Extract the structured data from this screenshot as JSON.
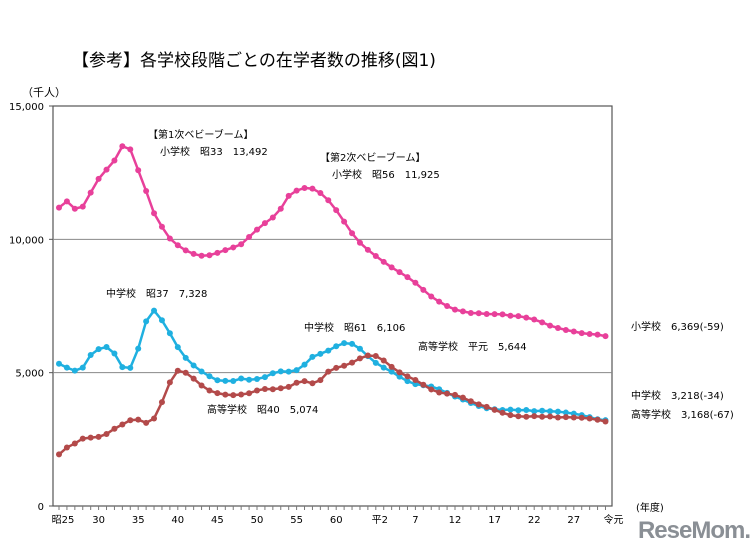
{
  "chart_data": {
    "type": "line",
    "title": "【参考】各学校段階ごとの在学者数の推移(図1)",
    "ylabel": "（千人）",
    "xlabel": "(年度)",
    "ylim": [
      0,
      15000
    ],
    "yticks": [
      "0",
      "5,000",
      "10,000",
      "15,000"
    ],
    "ytick_values": [
      0,
      5000,
      10000,
      15000
    ],
    "grid": "horizontal",
    "x_years": [
      1950,
      1951,
      1952,
      1953,
      1954,
      1955,
      1956,
      1957,
      1958,
      1959,
      1960,
      1961,
      1962,
      1963,
      1964,
      1965,
      1966,
      1967,
      1968,
      1969,
      1970,
      1971,
      1972,
      1973,
      1974,
      1975,
      1976,
      1977,
      1978,
      1979,
      1980,
      1981,
      1982,
      1983,
      1984,
      1985,
      1986,
      1987,
      1988,
      1989,
      1990,
      1991,
      1992,
      1993,
      1994,
      1995,
      1996,
      1997,
      1998,
      1999,
      2000,
      2001,
      2002,
      2003,
      2004,
      2005,
      2006,
      2007,
      2008,
      2009,
      2010,
      2011,
      2012,
      2013,
      2014,
      2015,
      2016,
      2017,
      2018,
      2019
    ],
    "xticks": [
      {
        "label": "昭25",
        "year": 1950
      },
      {
        "label": "30",
        "year": 1955
      },
      {
        "label": "35",
        "year": 1960
      },
      {
        "label": "40",
        "year": 1965
      },
      {
        "label": "45",
        "year": 1970
      },
      {
        "label": "50",
        "year": 1975
      },
      {
        "label": "55",
        "year": 1980
      },
      {
        "label": "60",
        "year": 1985
      },
      {
        "label": "平2",
        "year": 1990
      },
      {
        "label": "7",
        "year": 1995
      },
      {
        "label": "12",
        "year": 2000
      },
      {
        "label": "17",
        "year": 2005
      },
      {
        "label": "22",
        "year": 2010
      },
      {
        "label": "27",
        "year": 2015
      },
      {
        "label": "令元",
        "year": 2019
      }
    ],
    "series": [
      {
        "name": "小学校",
        "color": "#e8409a",
        "values": [
          11191,
          11423,
          11149,
          11225,
          11751,
          12267,
          12616,
          12957,
          13492,
          13375,
          12591,
          11811,
          10977,
          10471,
          10030,
          9776,
          9584,
          9453,
          9383,
          9403,
          9493,
          9596,
          9696,
          9816,
          10088,
          10365,
          10609,
          10819,
          11146,
          11630,
          11827,
          11925,
          11902,
          11739,
          11465,
          11095,
          10665,
          10227,
          9873,
          9607,
          9373,
          9157,
          8947,
          8769,
          8583,
          8370,
          8105,
          7855,
          7663,
          7500,
          7366,
          7297,
          7239,
          7227,
          7201,
          7197,
          7188,
          7133,
          7122,
          7064,
          6993,
          6887,
          6765,
          6677,
          6601,
          6543,
          6484,
          6449,
          6428,
          6369
        ]
      },
      {
        "name": "中学校",
        "color": "#1fb0e0",
        "values": [
          5333,
          5188,
          5076,
          5187,
          5664,
          5884,
          5963,
          5719,
          5210,
          5180,
          5900,
          6925,
          7328,
          6964,
          6476,
          5957,
          5555,
          5271,
          5044,
          4865,
          4717,
          4694,
          4688,
          4780,
          4735,
          4762,
          4833,
          4978,
          5048,
          5041,
          5094,
          5300,
          5594,
          5706,
          5828,
          5990,
          6106,
          6081,
          5896,
          5619,
          5369,
          5189,
          5037,
          4850,
          4681,
          4570,
          4528,
          4481,
          4380,
          4244,
          4104,
          3992,
          3863,
          3748,
          3664,
          3626,
          3602,
          3615,
          3592,
          3600,
          3558,
          3574,
          3552,
          3537,
          3504,
          3465,
          3406,
          3333,
          3252,
          3218
        ]
      },
      {
        "name": "高等学校",
        "color": "#b34a4a",
        "values": [
          1935,
          2194,
          2345,
          2528,
          2565,
          2592,
          2702,
          2898,
          3057,
          3216,
          3239,
          3119,
          3282,
          3897,
          4634,
          5074,
          4998,
          4776,
          4520,
          4330,
          4232,
          4178,
          4159,
          4181,
          4226,
          4333,
          4386,
          4380,
          4415,
          4465,
          4622,
          4682,
          4601,
          4718,
          5039,
          5178,
          5260,
          5375,
          5534,
          5644,
          5623,
          5455,
          5218,
          5010,
          4862,
          4725,
          4547,
          4371,
          4258,
          4212,
          4165,
          4062,
          3929,
          3810,
          3719,
          3605,
          3495,
          3407,
          3367,
          3348,
          3369,
          3349,
          3356,
          3320,
          3334,
          3319,
          3309,
          3280,
          3236,
          3168
        ]
      }
    ],
    "annotations": [
      {
        "text": "【第1次ベビーブーム】"
      },
      {
        "text": "小学校　昭33　13,492"
      },
      {
        "text": "【第2次ベビーブーム】"
      },
      {
        "text": "小学校　昭56　11,925"
      },
      {
        "text": "中学校　昭37　7,328"
      },
      {
        "text": "中学校　昭61　6,106"
      },
      {
        "text": "高等学校　平元　5,644"
      },
      {
        "text": "高等学校　昭40　5,074"
      }
    ],
    "end_labels": [
      {
        "text": "小学校　6,369(-59)"
      },
      {
        "text": "中学校　3,218(-34)"
      },
      {
        "text": "高等学校　3,168(-67)"
      }
    ]
  },
  "watermark": "ReseMom"
}
